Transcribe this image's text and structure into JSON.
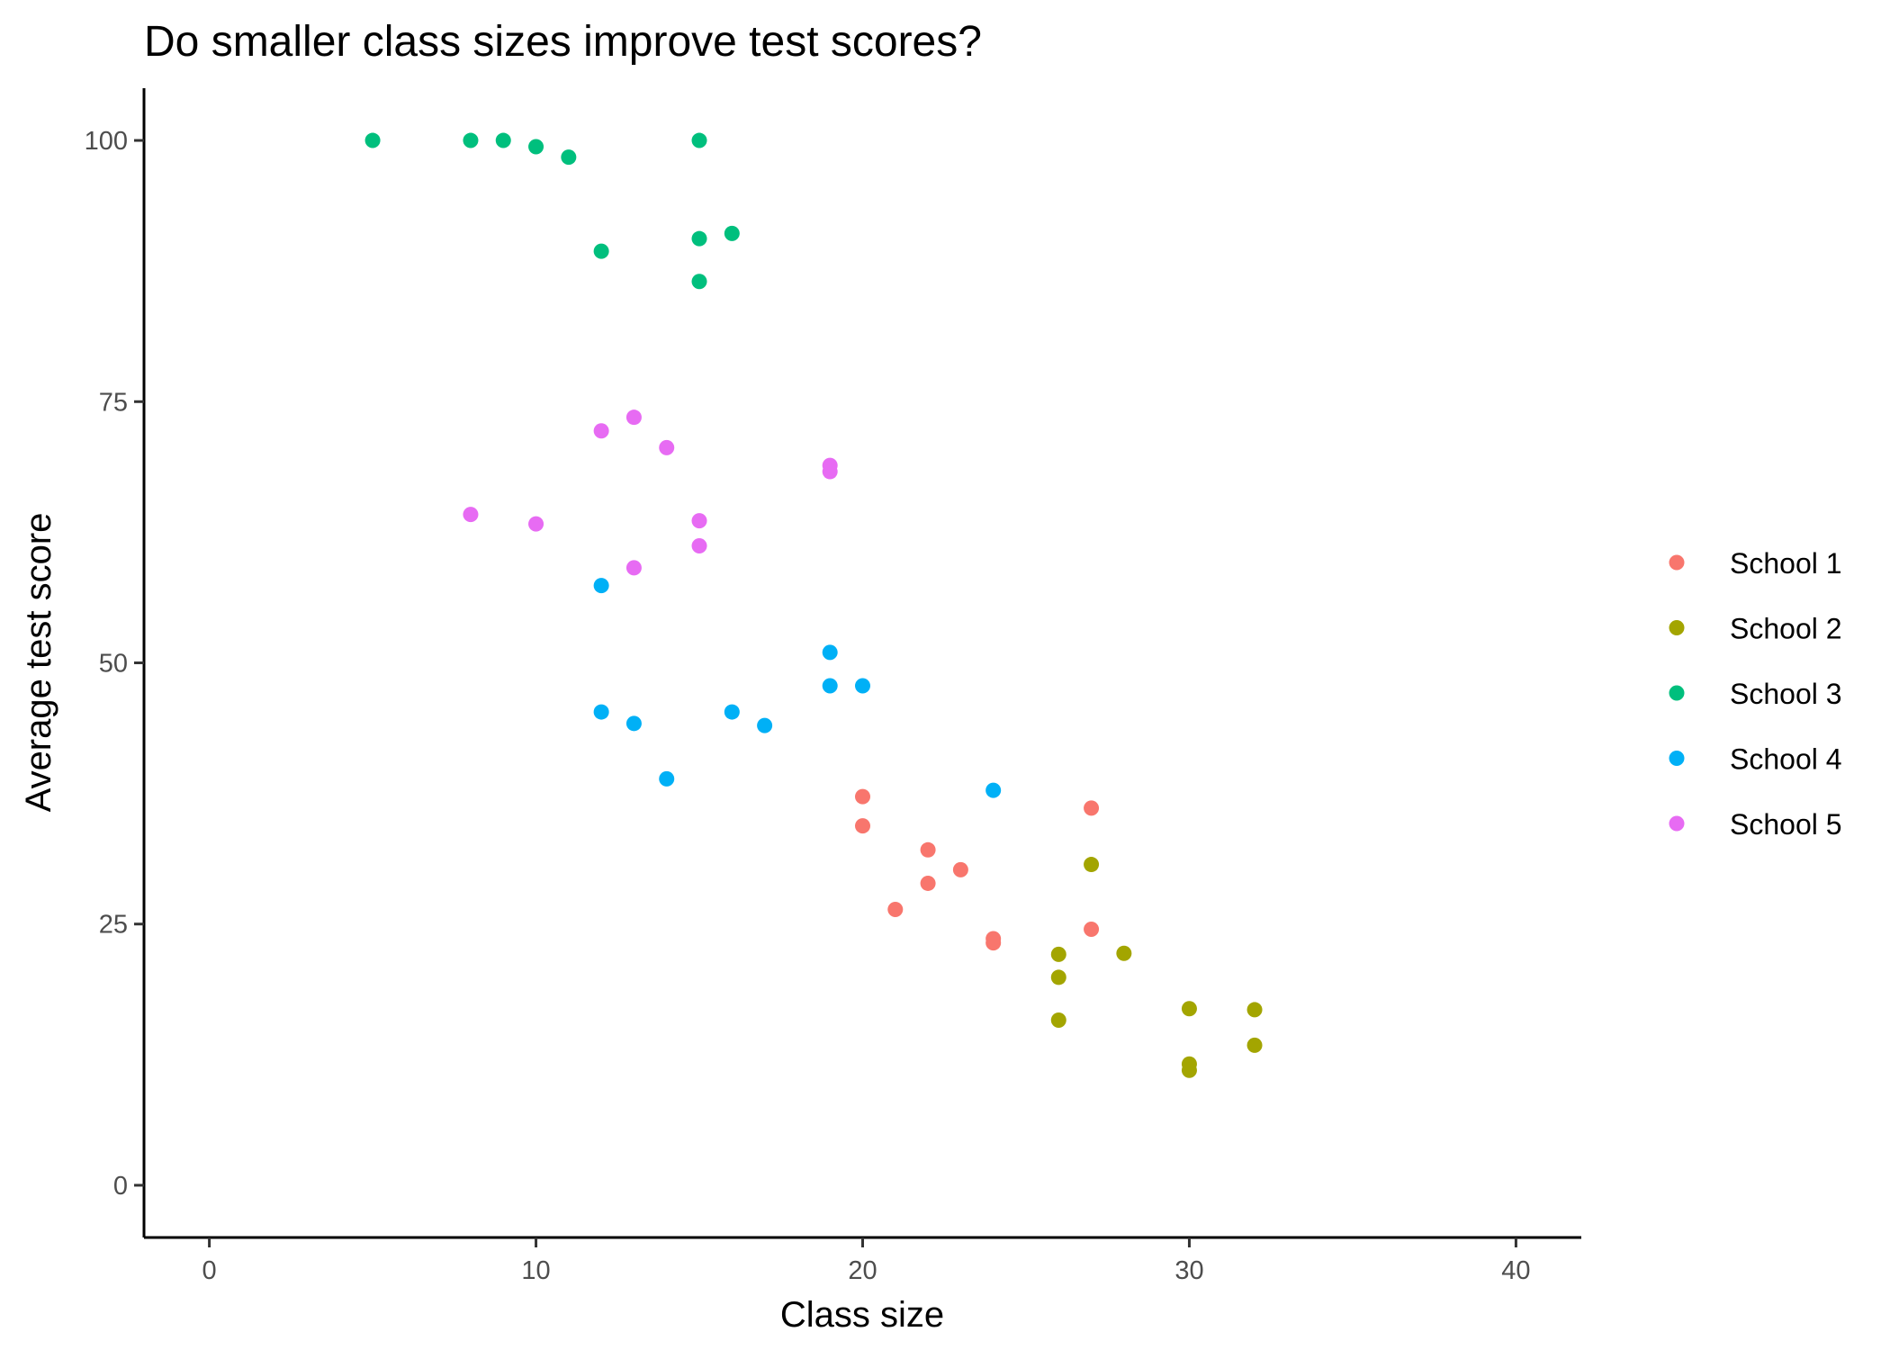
{
  "chart_data": {
    "type": "scatter",
    "title": "Do smaller class sizes improve test scores?",
    "xlabel": "Class size",
    "ylabel": "Average test score",
    "xlim": [
      -2,
      42
    ],
    "ylim": [
      -5,
      105
    ],
    "x_ticks": [
      0,
      10,
      20,
      30,
      40
    ],
    "y_ticks": [
      0,
      25,
      50,
      75,
      100
    ],
    "grid": false,
    "legend_position": "right",
    "series": [
      {
        "name": "School 1",
        "color": "#F8766D",
        "points": [
          [
            20,
            37.2
          ],
          [
            20,
            34.4
          ],
          [
            21,
            26.4
          ],
          [
            22,
            32.1
          ],
          [
            22,
            28.9
          ],
          [
            23,
            30.2
          ],
          [
            24,
            23.6
          ],
          [
            24,
            23.2
          ],
          [
            27,
            36.1
          ],
          [
            27,
            24.5
          ]
        ]
      },
      {
        "name": "School 2",
        "color": "#A3A500",
        "points": [
          [
            26,
            22.1
          ],
          [
            26,
            19.9
          ],
          [
            26,
            15.8
          ],
          [
            27,
            30.7
          ],
          [
            28,
            22.2
          ],
          [
            30,
            16.9
          ],
          [
            30,
            11.6
          ],
          [
            30,
            11.0
          ],
          [
            32,
            16.8
          ],
          [
            32,
            13.4
          ]
        ]
      },
      {
        "name": "School 3",
        "color": "#00BF7D",
        "points": [
          [
            5,
            100
          ],
          [
            8,
            100
          ],
          [
            9,
            100
          ],
          [
            10,
            99.4
          ],
          [
            11,
            98.4
          ],
          [
            12,
            89.4
          ],
          [
            15,
            100
          ],
          [
            15,
            90.6
          ],
          [
            15,
            86.5
          ],
          [
            16,
            91.1
          ]
        ]
      },
      {
        "name": "School 4",
        "color": "#00B0F6",
        "points": [
          [
            12,
            57.4
          ],
          [
            12,
            45.3
          ],
          [
            13,
            44.2
          ],
          [
            14,
            38.9
          ],
          [
            16,
            45.3
          ],
          [
            17,
            44.0
          ],
          [
            19,
            51.0
          ],
          [
            19,
            47.8
          ],
          [
            20,
            47.8
          ],
          [
            24,
            37.8
          ]
        ]
      },
      {
        "name": "School 5",
        "color": "#E76BF3",
        "points": [
          [
            8,
            64.2
          ],
          [
            10,
            63.3
          ],
          [
            12,
            72.2
          ],
          [
            13,
            73.5
          ],
          [
            13,
            59.1
          ],
          [
            14,
            70.6
          ],
          [
            15,
            63.6
          ],
          [
            15,
            61.2
          ],
          [
            19,
            68.9
          ],
          [
            19,
            68.3
          ]
        ]
      }
    ]
  }
}
